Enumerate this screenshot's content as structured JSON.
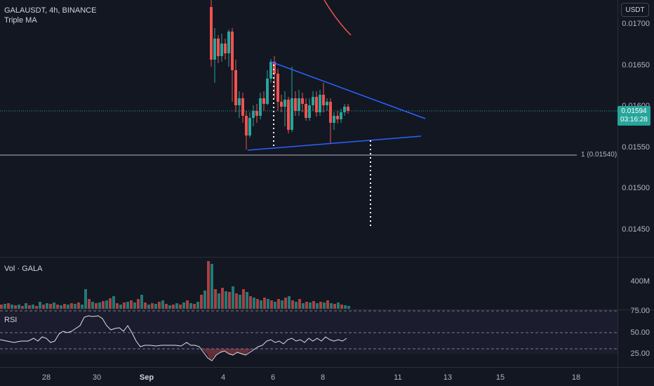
{
  "legend": {
    "symbol": "GALAUSDT, 4h, BINANCE",
    "indicator": "Triple MA"
  },
  "currency": "USDT",
  "price_axis": [
    "0.01700",
    "0.01650",
    "0.01600",
    "0.01550",
    "0.01500",
    "0.01450"
  ],
  "current_price": "0.01594",
  "countdown": "03:16:28",
  "level_label": "1 (0.01540)",
  "volume_pane": {
    "title": "Vol · GALA",
    "axis": [
      "400M"
    ]
  },
  "rsi_pane": {
    "title": "RSI",
    "axis": [
      "75.00",
      "50.00",
      "25.00"
    ]
  },
  "time_axis": [
    "28",
    "30",
    "Sep",
    "4",
    "6",
    "8",
    "11",
    "13",
    "15",
    "18"
  ],
  "colors": {
    "up": "#26a69a",
    "down": "#ef5350",
    "trendline": "#2962ff",
    "background": "#131722"
  }
}
